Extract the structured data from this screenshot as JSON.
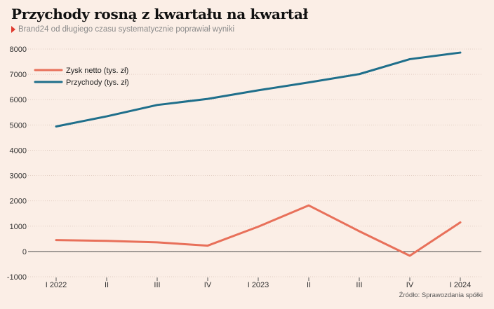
{
  "title": "Przychody rosną z kwartału na kwartał",
  "subtitle": "Brand24 od długiego czasu systematycznie poprawiał wyniki",
  "source": "Źródło: Sprawozdania spółki",
  "chart_data": {
    "type": "line",
    "categories": [
      "I 2022",
      "II",
      "III",
      "IV",
      "I 2023",
      "II",
      "III",
      "IV",
      "I 2024"
    ],
    "series": [
      {
        "name": "Zysk netto (tys. zł)",
        "color": "#e8705a",
        "values": [
          450,
          420,
          360,
          230,
          980,
          1820,
          800,
          -170,
          1150
        ]
      },
      {
        "name": "Przychody (tys. zł)",
        "color": "#1f6f8b",
        "values": [
          4940,
          5340,
          5790,
          6030,
          6370,
          6680,
          7010,
          7600,
          7860
        ]
      }
    ],
    "yticks": [
      -1000,
      0,
      1000,
      2000,
      3000,
      4000,
      5000,
      6000,
      7000,
      8000
    ],
    "ylim": [
      -1000,
      8000
    ],
    "grid": true,
    "legend_position": "top-left"
  }
}
